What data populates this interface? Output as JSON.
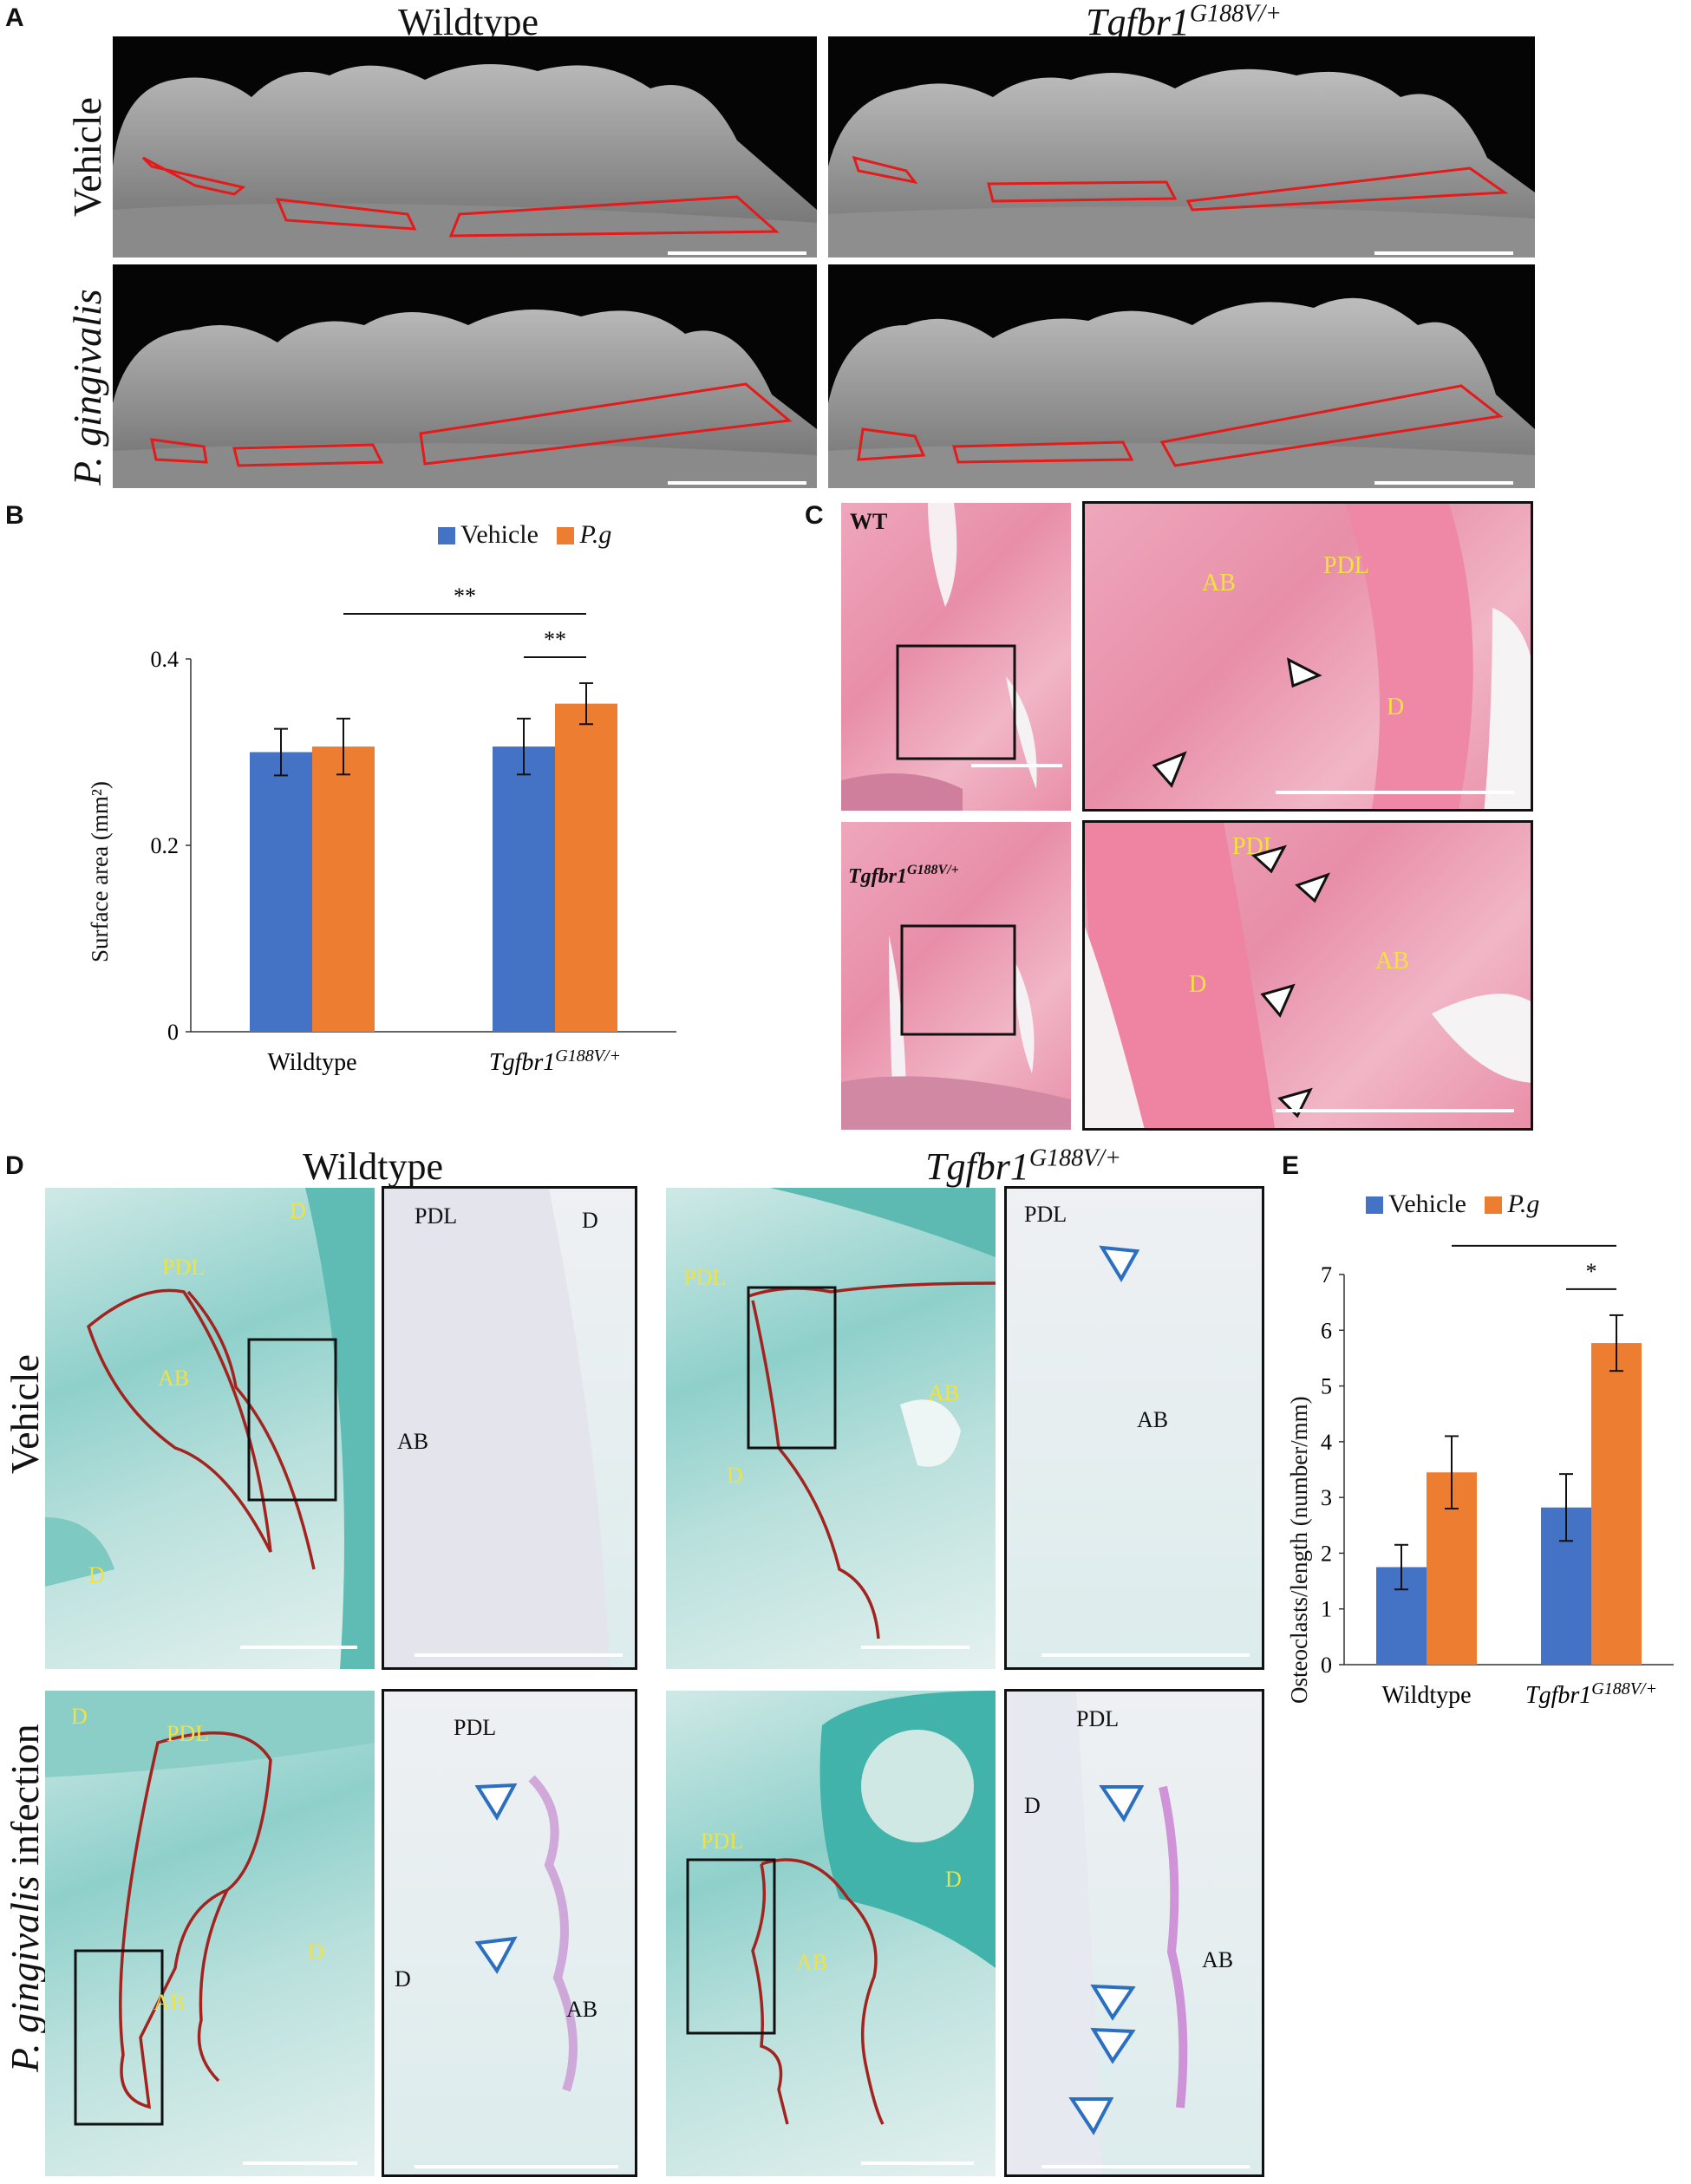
{
  "panel_letters": [
    "A",
    "B",
    "C",
    "D",
    "E"
  ],
  "panelA": {
    "col_wildtype": "Wildtype",
    "col_mutant_base": "Tgfbr1",
    "col_mutant_sup": "G188V/+",
    "row_vehicle": "Vehicle",
    "row_pg_italic": "P. gingivalis"
  },
  "panelC": {
    "label_wt": "WT",
    "label_mut_base": "Tgfbr1",
    "label_mut_sup": "G188V/+",
    "ab": "AB",
    "pdl": "PDL",
    "d": "D"
  },
  "panelD": {
    "col_wildtype": "Wildtype",
    "col_mutant_base": "Tgfbr1",
    "col_mutant_sup": "G188V/+",
    "row_vehicle": "Vehicle",
    "row_infection_italic": "P. gingivalis",
    "row_infection_rest": " infection",
    "ab": "AB",
    "pdl": "PDL",
    "d": "D"
  },
  "chart_data": [
    {
      "panel": "B",
      "type": "bar",
      "categories": [
        "Wildtype",
        "Tgfbr1G188V/+"
      ],
      "category_display": [
        {
          "base": "Wildtype",
          "sup": ""
        },
        {
          "base": "Tgfbr1",
          "sup": "G188V/+"
        }
      ],
      "series": [
        {
          "name": "Vehicle",
          "color": "#4472c4",
          "values": [
            0.3,
            0.306
          ],
          "errors": [
            0.025,
            0.03
          ]
        },
        {
          "name": "P.g",
          "color": "#ed7d31",
          "values": [
            0.306,
            0.352
          ],
          "errors": [
            0.03,
            0.022
          ]
        }
      ],
      "ylabel": "Surface area (mm²)",
      "ylim": [
        0,
        0.4
      ],
      "yticks": [
        "0",
        "0.2",
        "0.4"
      ],
      "ytick_values": [
        0,
        0.2,
        0.4
      ],
      "significance": [
        "**",
        "**"
      ],
      "legend_position": "top",
      "grid": false
    },
    {
      "panel": "E",
      "type": "bar",
      "categories": [
        "Wildtype",
        "Tgfbr1G188V/+"
      ],
      "category_display": [
        {
          "base": "Wildtype",
          "sup": ""
        },
        {
          "base": "Tgfbr1",
          "sup": "G188V/+"
        }
      ],
      "series": [
        {
          "name": "Vehicle",
          "color": "#4472c4",
          "values": [
            1.75,
            2.82
          ],
          "errors": [
            0.4,
            0.6
          ]
        },
        {
          "name": "P.g",
          "color": "#ed7d31",
          "values": [
            3.45,
            5.77
          ],
          "errors": [
            0.65,
            0.5
          ]
        }
      ],
      "ylabel": "Osteoclasts/length (number/mm)",
      "ylim": [
        0,
        7
      ],
      "yticks": [
        "0",
        "1",
        "2",
        "3",
        "4",
        "5",
        "6",
        "7"
      ],
      "ytick_values": [
        0,
        1,
        2,
        3,
        4,
        5,
        6,
        7
      ],
      "significance": [
        "*",
        "*"
      ],
      "legend_position": "top",
      "grid": false
    }
  ]
}
